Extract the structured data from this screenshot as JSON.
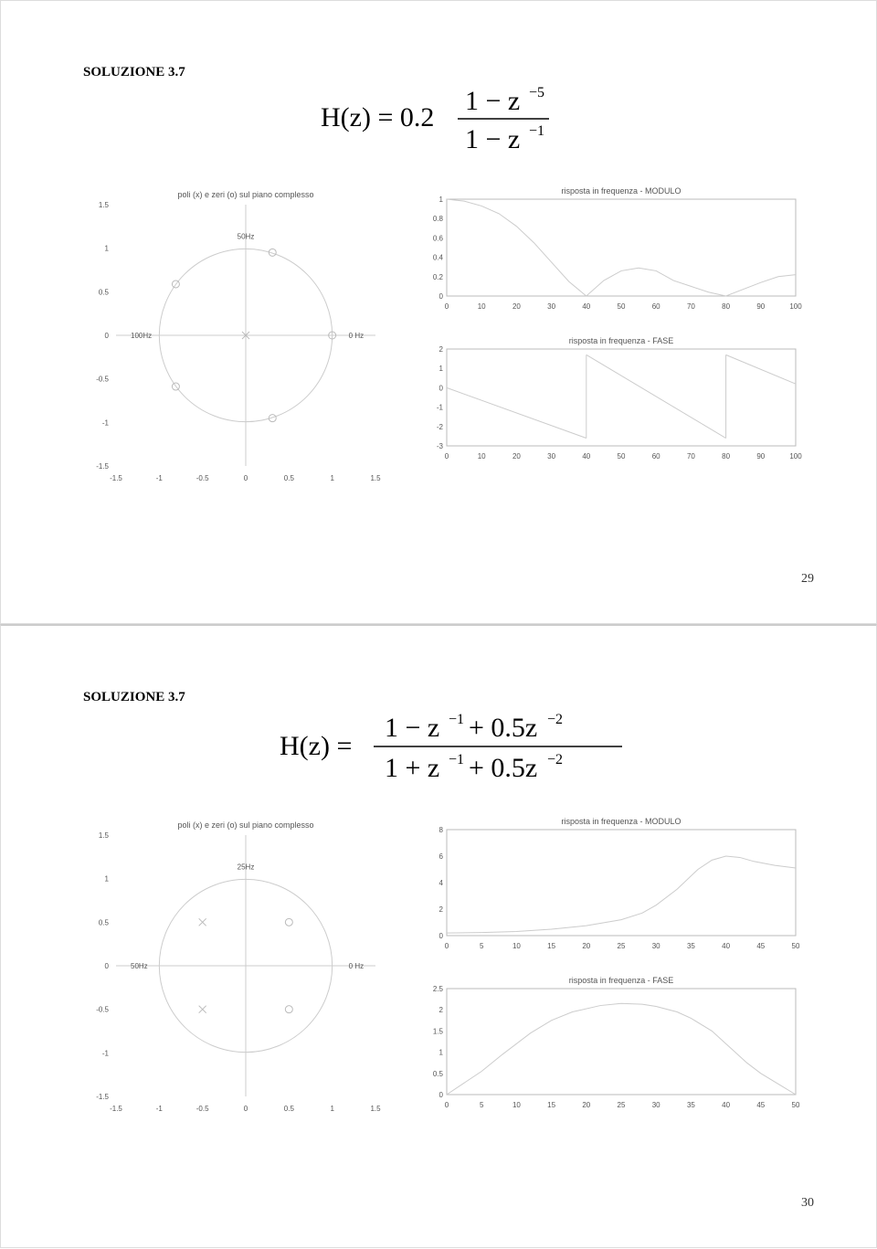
{
  "page1": {
    "heading": "SOLUZIONE 3.7",
    "page_number": "29",
    "formula": {
      "prefix": "H(z) = 0.2",
      "numerator": "1 − z",
      "num_exp": "−5",
      "denominator": "1 − z",
      "den_exp": "−1"
    },
    "pz_plot": {
      "title": "poli (x) e zeri (o) sul piano complesso",
      "xlim": [
        -1.5,
        1.5
      ],
      "ylim": [
        -1.5,
        1.5
      ],
      "xticks": [
        -1.5,
        -1,
        -0.5,
        0,
        0.5,
        1,
        1.5
      ],
      "yticks": [
        -1.5,
        -1,
        -0.5,
        0,
        0.5,
        1,
        1.5
      ],
      "top_label": "50Hz",
      "left_label": "100Hz",
      "right_label": "0 Hz",
      "zeros": [
        [
          1,
          0
        ],
        [
          0.309,
          0.951
        ],
        [
          -0.809,
          0.588
        ],
        [
          -0.809,
          -0.588
        ],
        [
          0.309,
          -0.951
        ]
      ],
      "poles": [
        [
          0,
          0
        ]
      ],
      "unit_circle_radius": 1,
      "colors": {
        "axis": "#bbb",
        "line": "#ccc",
        "text": "#555"
      }
    },
    "mag_plot": {
      "title": "risposta in frequenza - MODULO",
      "xlim": [
        0,
        100
      ],
      "ylim": [
        0,
        1
      ],
      "xticks": [
        0,
        10,
        20,
        30,
        40,
        50,
        60,
        70,
        80,
        90,
        100
      ],
      "yticks": [
        0,
        0.2,
        0.4,
        0.6,
        0.8,
        1
      ],
      "curve": [
        [
          0,
          1
        ],
        [
          5,
          0.98
        ],
        [
          10,
          0.93
        ],
        [
          15,
          0.85
        ],
        [
          20,
          0.72
        ],
        [
          25,
          0.55
        ],
        [
          30,
          0.35
        ],
        [
          35,
          0.15
        ],
        [
          40,
          0
        ],
        [
          45,
          0.16
        ],
        [
          50,
          0.26
        ],
        [
          55,
          0.29
        ],
        [
          60,
          0.26
        ],
        [
          65,
          0.16
        ],
        [
          70,
          0.1
        ],
        [
          75,
          0.04
        ],
        [
          80,
          0
        ],
        [
          85,
          0.07
        ],
        [
          90,
          0.14
        ],
        [
          95,
          0.2
        ],
        [
          100,
          0.22
        ]
      ]
    },
    "phase_plot": {
      "title": "risposta in frequenza - FASE",
      "xlim": [
        0,
        100
      ],
      "ylim": [
        -3,
        2
      ],
      "xticks": [
        0,
        10,
        20,
        30,
        40,
        50,
        60,
        70,
        80,
        90,
        100
      ],
      "yticks": [
        -3,
        -2,
        -1,
        0,
        1,
        2
      ],
      "segments": [
        [
          [
            0,
            0
          ],
          [
            40,
            -2.6
          ]
        ],
        [
          [
            40,
            -2.6
          ],
          [
            40,
            1.7
          ]
        ],
        [
          [
            40,
            1.7
          ],
          [
            80,
            -2.6
          ]
        ],
        [
          [
            80,
            -2.6
          ],
          [
            80,
            1.7
          ]
        ],
        [
          [
            80,
            1.7
          ],
          [
            100,
            0.2
          ]
        ]
      ]
    }
  },
  "page2": {
    "heading": "SOLUZIONE 3.7",
    "page_number": "30",
    "formula": {
      "prefix": "H(z) = ",
      "numerator": "1 − z⁻¹ + 0.5z⁻²",
      "denominator": "1 + z⁻¹ + 0.5z⁻²"
    },
    "pz_plot": {
      "title": "poli (x) e zeri (o) sul piano complesso",
      "xlim": [
        -1.5,
        1.5
      ],
      "ylim": [
        -1.5,
        1.5
      ],
      "xticks": [
        -1.5,
        -1,
        -0.5,
        0,
        0.5,
        1,
        1.5
      ],
      "yticks": [
        -1.5,
        -1,
        -0.5,
        0,
        0.5,
        1,
        1.5
      ],
      "top_label": "25Hz",
      "left_label": "50Hz",
      "right_label": "0 Hz",
      "zeros": [
        [
          0.5,
          0.5
        ],
        [
          0.5,
          -0.5
        ]
      ],
      "poles": [
        [
          -0.5,
          0.5
        ],
        [
          -0.5,
          -0.5
        ]
      ],
      "unit_circle_radius": 1,
      "colors": {
        "axis": "#bbb",
        "line": "#ccc",
        "text": "#555"
      }
    },
    "mag_plot": {
      "title": "risposta in frequenza - MODULO",
      "xlim": [
        0,
        50
      ],
      "ylim": [
        0,
        8
      ],
      "xticks": [
        0,
        5,
        10,
        15,
        20,
        25,
        30,
        35,
        40,
        45,
        50
      ],
      "yticks": [
        0,
        2,
        4,
        6,
        8
      ],
      "curve": [
        [
          0,
          0.2
        ],
        [
          5,
          0.23
        ],
        [
          10,
          0.31
        ],
        [
          15,
          0.48
        ],
        [
          20,
          0.75
        ],
        [
          25,
          1.2
        ],
        [
          28,
          1.7
        ],
        [
          30,
          2.3
        ],
        [
          33,
          3.5
        ],
        [
          36,
          5
        ],
        [
          38,
          5.7
        ],
        [
          40,
          6
        ],
        [
          42,
          5.9
        ],
        [
          44,
          5.6
        ],
        [
          47,
          5.3
        ],
        [
          50,
          5.1
        ]
      ]
    },
    "phase_plot": {
      "title": "risposta in frequenza - FASE",
      "xlim": [
        0,
        50
      ],
      "ylim": [
        0,
        2.5
      ],
      "xticks": [
        0,
        5,
        10,
        15,
        20,
        25,
        30,
        35,
        40,
        45,
        50
      ],
      "yticks": [
        0,
        0.5,
        1,
        1.5,
        2,
        2.5
      ],
      "curve": [
        [
          0,
          0
        ],
        [
          5,
          0.55
        ],
        [
          8,
          0.95
        ],
        [
          12,
          1.45
        ],
        [
          15,
          1.75
        ],
        [
          18,
          1.95
        ],
        [
          22,
          2.1
        ],
        [
          25,
          2.15
        ],
        [
          28,
          2.13
        ],
        [
          30,
          2.08
        ],
        [
          33,
          1.95
        ],
        [
          35,
          1.8
        ],
        [
          38,
          1.5
        ],
        [
          40,
          1.2
        ],
        [
          43,
          0.75
        ],
        [
          45,
          0.5
        ],
        [
          48,
          0.2
        ],
        [
          50,
          0
        ]
      ]
    }
  }
}
